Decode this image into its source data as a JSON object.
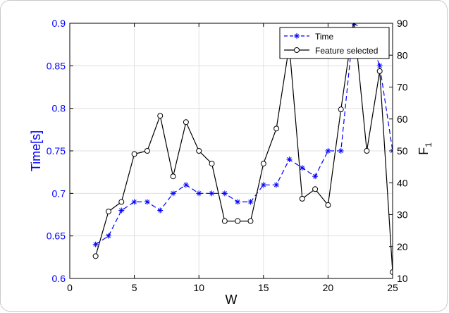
{
  "chart_data": {
    "type": "line",
    "xlabel": "W",
    "ylabel_left": "Time[s]",
    "ylabel_right": "F",
    "ylabel_right_subscript": "1",
    "xlim": [
      0,
      25
    ],
    "ylim_left": [
      0.6,
      0.9
    ],
    "ylim_right": [
      10,
      90
    ],
    "x_ticks": [
      "0",
      "5",
      "10",
      "15",
      "20",
      "25"
    ],
    "y_left_ticks": [
      "0.6",
      "0.65",
      "0.7",
      "0.75",
      "0.8",
      "0.85",
      "0.9"
    ],
    "y_right_ticks": [
      "10",
      "20",
      "30",
      "40",
      "50",
      "60",
      "70",
      "80",
      "90"
    ],
    "grid": true,
    "legend_position": "top-right",
    "colors": {
      "time": "#0000ff",
      "feature": "#000000",
      "grid": "#e0e0e0",
      "frame": "#c9c9c9"
    },
    "series": [
      {
        "name": "Time",
        "axis": "left",
        "marker": "asterisk",
        "style": "dashed",
        "x": [
          2,
          3,
          4,
          5,
          6,
          7,
          8,
          9,
          10,
          11,
          12,
          13,
          14,
          15,
          16,
          17,
          18,
          19,
          20,
          21,
          22,
          23,
          24,
          25
        ],
        "values": [
          0.64,
          0.65,
          0.68,
          0.69,
          0.69,
          0.68,
          0.7,
          0.71,
          0.7,
          0.7,
          0.7,
          0.69,
          0.69,
          0.71,
          0.71,
          0.74,
          0.73,
          0.72,
          0.75,
          0.75,
          0.9,
          0.89,
          0.85,
          0.75
        ]
      },
      {
        "name": "Feature selected",
        "axis": "right",
        "marker": "circle",
        "style": "solid",
        "x": [
          2,
          3,
          4,
          5,
          6,
          7,
          8,
          9,
          10,
          11,
          12,
          13,
          14,
          15,
          16,
          17,
          18,
          19,
          20,
          21,
          22,
          23,
          24,
          25
        ],
        "values": [
          17,
          31,
          34,
          49,
          50,
          61,
          42,
          59,
          50,
          46,
          28,
          28,
          28,
          46,
          57,
          83,
          35,
          38,
          33,
          63,
          91,
          50,
          75,
          12
        ]
      }
    ]
  }
}
